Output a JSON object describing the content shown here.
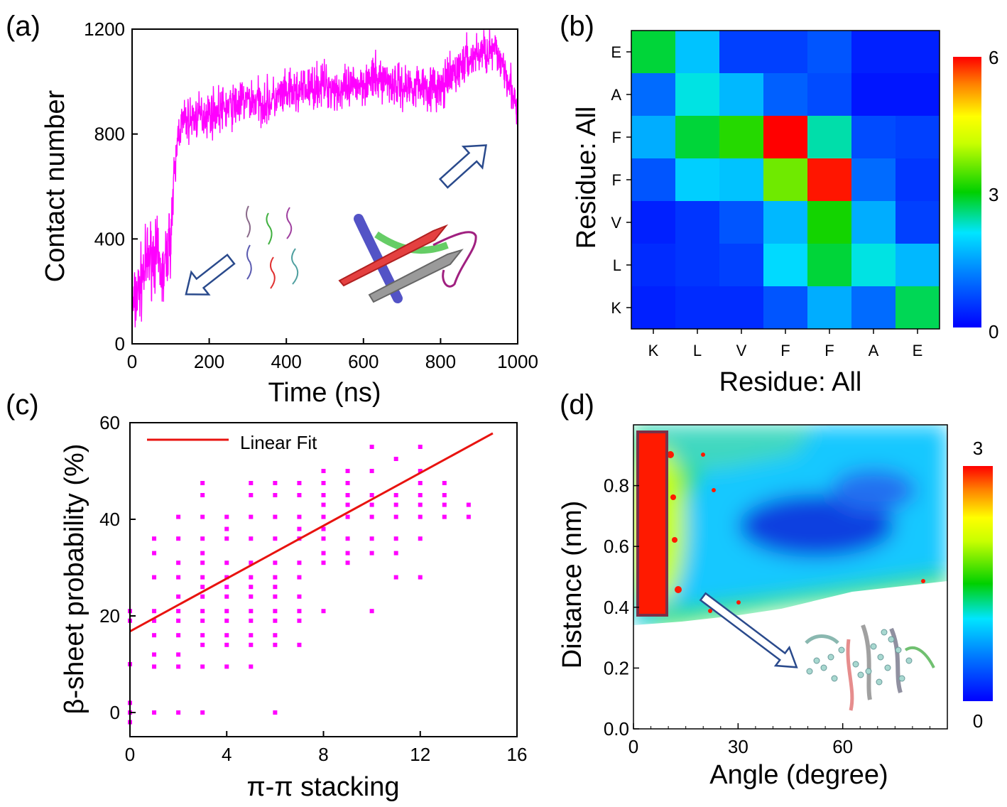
{
  "panels": {
    "a": "(a)",
    "b": "(b)",
    "c": "(c)",
    "d": "(d)"
  },
  "chart_data": [
    {
      "panel": "(a)",
      "type": "line",
      "xlabel": "Time (ns)",
      "ylabel": "Contact number",
      "xlim": [
        0,
        1000
      ],
      "ylim": [
        0,
        1200
      ],
      "xticks": [
        "0",
        "200",
        "400",
        "600",
        "800",
        "1000"
      ],
      "yticks": [
        "0",
        "400",
        "800",
        "1200"
      ],
      "series_color": "#ff00ff",
      "trend": {
        "x": [
          0,
          20,
          40,
          60,
          80,
          100,
          110,
          120,
          140,
          160,
          200,
          250,
          300,
          350,
          400,
          450,
          500,
          550,
          600,
          650,
          700,
          750,
          800,
          820,
          840,
          860,
          880,
          900,
          920,
          940,
          960,
          980,
          1000
        ],
        "y": [
          120,
          220,
          320,
          350,
          250,
          420,
          620,
          820,
          850,
          860,
          880,
          900,
          930,
          920,
          950,
          970,
          990,
          960,
          1000,
          1010,
          980,
          990,
          970,
          1000,
          1040,
          1070,
          1090,
          1110,
          1120,
          1110,
          1080,
          1000,
          850
        ]
      },
      "noise_amplitude": 60,
      "annotations": [
        "arrow-down-left",
        "arrow-up-right",
        "peptide-chains-inset",
        "beta-sheet-inset"
      ]
    },
    {
      "panel": "(b)",
      "type": "heatmap",
      "xlabel": "Residue: All",
      "ylabel": "Residue: All",
      "x_categories": [
        "K",
        "L",
        "V",
        "F",
        "F",
        "A",
        "E"
      ],
      "y_categories_top_to_bottom": [
        "E",
        "A",
        "F",
        "F",
        "V",
        "L",
        "K"
      ],
      "values_top_to_bottom": [
        [
          2.8,
          1.8,
          0.6,
          0.6,
          0.8,
          0.3,
          0.3
        ],
        [
          1.0,
          2.2,
          1.7,
          0.9,
          0.7,
          0.2,
          0.2
        ],
        [
          1.6,
          2.8,
          3.2,
          6.0,
          2.4,
          0.7,
          0.6
        ],
        [
          0.8,
          1.9,
          1.8,
          3.6,
          5.9,
          1.0,
          0.5
        ],
        [
          0.3,
          0.5,
          0.8,
          1.7,
          3.1,
          1.6,
          0.6
        ],
        [
          0.4,
          0.5,
          0.6,
          2.0,
          2.8,
          2.2,
          1.7
        ],
        [
          0.3,
          0.4,
          0.4,
          0.8,
          1.6,
          1.0,
          2.7
        ]
      ],
      "colorbar": {
        "min": 0,
        "max": 6,
        "ticks": [
          "0",
          "3",
          "6"
        ]
      }
    },
    {
      "panel": "(c)",
      "type": "scatter",
      "xlabel": "π-π stacking",
      "ylabel": "β-sheet probability (%)",
      "xlim": [
        0,
        16
      ],
      "ylim": [
        -5,
        60
      ],
      "xticks": [
        "0",
        "4",
        "8",
        "12",
        "16"
      ],
      "yticks": [
        "0",
        "20",
        "40",
        "60"
      ],
      "legend": "Linear Fit",
      "point_color": "#ff00ff",
      "fit_color": "#e8130f",
      "fit": {
        "x": [
          0,
          15
        ],
        "y": [
          16.8,
          57.8
        ]
      },
      "points_x": [
        0,
        0,
        0,
        0,
        0,
        0,
        1,
        1,
        1,
        1,
        1,
        1,
        1,
        1,
        1,
        2,
        2,
        2,
        2,
        2,
        2,
        2,
        2,
        2,
        2,
        2,
        3,
        3,
        3,
        3,
        3,
        3,
        3,
        3,
        3,
        3,
        3,
        3,
        3,
        3,
        3,
        4,
        4,
        4,
        4,
        4,
        4,
        4,
        4,
        4,
        4,
        4,
        4,
        5,
        5,
        5,
        5,
        5,
        5,
        5,
        5,
        5,
        5,
        5,
        5,
        5,
        6,
        6,
        6,
        6,
        6,
        6,
        6,
        6,
        6,
        6,
        6,
        6,
        6,
        7,
        7,
        7,
        7,
        7,
        7,
        7,
        7,
        7,
        7,
        7,
        8,
        8,
        8,
        8,
        8,
        8,
        8,
        8,
        8,
        8,
        9,
        9,
        9,
        9,
        9,
        9,
        9,
        9,
        10,
        10,
        10,
        10,
        10,
        10,
        10,
        10,
        11,
        11,
        11,
        11,
        11,
        11,
        11,
        12,
        12,
        12,
        12,
        12,
        12,
        12,
        12,
        13,
        13,
        13,
        13,
        14,
        14
      ],
      "points_y": [
        -2,
        0,
        2,
        10,
        19,
        21,
        0,
        9.5,
        12,
        16,
        19,
        21,
        28,
        33,
        36,
        0,
        9.5,
        12,
        16,
        19,
        21,
        24,
        28,
        31,
        36,
        40.5,
        0,
        9.5,
        14,
        16,
        19,
        21,
        24,
        26,
        28,
        31,
        33,
        36,
        40.5,
        45,
        47.5,
        9.5,
        14,
        16,
        19,
        21,
        24,
        26,
        28,
        31,
        36,
        38,
        40.5,
        9.5,
        14,
        16,
        19,
        21,
        24,
        26,
        28,
        31,
        36,
        40.5,
        45,
        47.5,
        0,
        14,
        16,
        19,
        21,
        24,
        26,
        28,
        31,
        36,
        40.5,
        45,
        47.5,
        14,
        19,
        21,
        24,
        28,
        31,
        36,
        38,
        40.5,
        45,
        47.5,
        21,
        31,
        33,
        36,
        38,
        40.5,
        43,
        45,
        47.5,
        50,
        31,
        33,
        36,
        40.5,
        43,
        45,
        47.5,
        50,
        21,
        33,
        36,
        40.5,
        43,
        45,
        50,
        55,
        28,
        33,
        36,
        40.5,
        43,
        45,
        52.5,
        28,
        36,
        40.5,
        43,
        45,
        47.5,
        50,
        55,
        40.5,
        43,
        45,
        47.5,
        40.5,
        43
      ]
    },
    {
      "panel": "(d)",
      "type": "heatmap",
      "xlabel": "Angle (degree)",
      "ylabel": "Distance (nm)",
      "xlim": [
        0,
        90
      ],
      "ylim": [
        0,
        1.0
      ],
      "xticks": [
        "0",
        "30",
        "60"
      ],
      "yticks": [
        "0.0",
        "0.2",
        "0.4",
        "0.6",
        "0.8"
      ],
      "colorbar": {
        "min": 0,
        "max": 3,
        "ticks": [
          "0",
          "3"
        ]
      },
      "annotations": [
        "highlight-box-0-9-degree",
        "arrow-to-stacked-structure",
        "phenylalanine-stacking-inset"
      ]
    }
  ]
}
